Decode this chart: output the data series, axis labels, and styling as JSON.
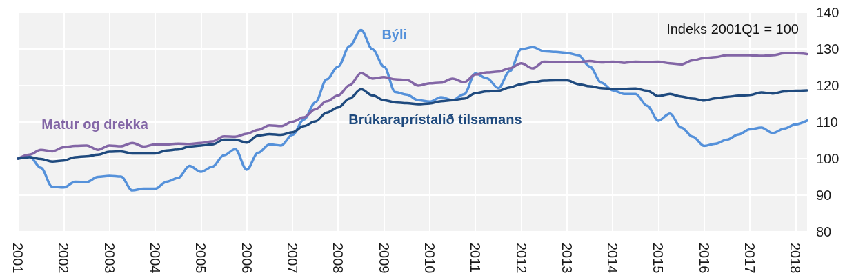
{
  "chart_data": {
    "type": "line",
    "x": [
      2001,
      2001.25,
      2001.5,
      2001.75,
      2002,
      2002.25,
      2002.5,
      2002.75,
      2003,
      2003.25,
      2003.5,
      2003.75,
      2004,
      2004.25,
      2004.5,
      2004.75,
      2005,
      2005.25,
      2005.5,
      2005.75,
      2006,
      2006.25,
      2006.5,
      2006.75,
      2007,
      2007.25,
      2007.5,
      2007.75,
      2008,
      2008.25,
      2008.5,
      2008.75,
      2009,
      2009.25,
      2009.5,
      2009.75,
      2010,
      2010.25,
      2010.5,
      2010.75,
      2011,
      2011.25,
      2011.5,
      2011.75,
      2012,
      2012.25,
      2012.5,
      2012.75,
      2013,
      2013.25,
      2013.5,
      2013.75,
      2014,
      2014.25,
      2014.5,
      2014.75,
      2015,
      2015.25,
      2015.5,
      2015.75,
      2016,
      2016.25,
      2016.5,
      2016.75,
      2017,
      2017.25,
      2017.5,
      2017.75,
      2018,
      2018.25
    ],
    "series": [
      {
        "name": "Býli",
        "color": "#5591da",
        "values": [
          100,
          100.6,
          97.5,
          92.3,
          92.1,
          93.7,
          93.6,
          95,
          95.3,
          95.1,
          91.3,
          91.8,
          91.8,
          93.7,
          94.7,
          98,
          96.4,
          97.8,
          100.9,
          102.6,
          97,
          101.6,
          103.9,
          103.6,
          106.5,
          110.7,
          115.4,
          121.7,
          125.2,
          130.8,
          135.2,
          129.9,
          125.2,
          118.2,
          117.5,
          116,
          115.6,
          116.8,
          116,
          117.6,
          123.3,
          122,
          119.3,
          123.9,
          129.9,
          130.5,
          129.4,
          129.2,
          128.9,
          128.3,
          125.2,
          120.8,
          118.7,
          117.7,
          117.7,
          114.5,
          110.4,
          112.3,
          108.5,
          106,
          103.5,
          104.1,
          105.2,
          106.6,
          108,
          108.5,
          107,
          108.2,
          109.4,
          110.4
        ]
      },
      {
        "name": "Matur og drekka",
        "color": "#8366a6",
        "values": [
          100,
          101.1,
          102.4,
          102,
          103.1,
          103.5,
          103.6,
          102.4,
          103.6,
          103.4,
          104.3,
          103.3,
          103.9,
          103.9,
          104.1,
          104,
          104.3,
          104.7,
          106.1,
          106,
          106.8,
          107.9,
          109.1,
          108.9,
          110.1,
          111.3,
          113.5,
          115.7,
          117.3,
          120.1,
          123.4,
          121.9,
          122.3,
          121.7,
          121.5,
          120,
          120.6,
          120.8,
          121.9,
          120.9,
          123,
          123.6,
          123.8,
          124.7,
          126.1,
          124.7,
          126.5,
          126.4,
          126.4,
          126.4,
          126.7,
          126.3,
          126.5,
          126.2,
          126.5,
          126.4,
          126.5,
          126.1,
          125.8,
          126.9,
          127.5,
          127.8,
          128.3,
          128.3,
          128.3,
          128.1,
          128.3,
          128.8,
          128.8,
          128.6
        ]
      },
      {
        "name": "Brúkaraprístalið tilsamans",
        "color": "#1f4a7e",
        "values": [
          100,
          100.4,
          99.9,
          99.2,
          99.5,
          100.4,
          100.6,
          101.1,
          101.9,
          102,
          101.4,
          101.4,
          101.4,
          102.2,
          102.5,
          103.3,
          103.6,
          103.9,
          105.2,
          105.2,
          104.4,
          106.3,
          106.7,
          106.5,
          107.2,
          108.9,
          110.2,
          112.6,
          114,
          116.4,
          119,
          117.3,
          116,
          115.4,
          115.2,
          114.9,
          115.1,
          115.7,
          116,
          116.4,
          117.9,
          118.4,
          118.6,
          119.5,
          120.4,
          120.9,
          121.3,
          121.4,
          121.4,
          120.4,
          119.8,
          119.3,
          119.1,
          119.1,
          119.2,
          118.6,
          117.1,
          117.7,
          117,
          116.4,
          115.9,
          116.5,
          116.9,
          117.2,
          117.4,
          118.1,
          117.8,
          118.4,
          118.6,
          118.7
        ]
      }
    ],
    "xlim": [
      2001,
      2018.25
    ],
    "xticks": [
      2001,
      2002,
      2003,
      2004,
      2005,
      2006,
      2007,
      2008,
      2009,
      2010,
      2011,
      2012,
      2013,
      2014,
      2015,
      2016,
      2017,
      2018
    ],
    "ylim": [
      80,
      140
    ],
    "yticks": [
      80,
      90,
      100,
      110,
      120,
      130,
      140
    ],
    "annotations": [
      "Indeks 2001Q1 = 100"
    ],
    "grid": true,
    "marker": "none",
    "line_style": "solid"
  }
}
